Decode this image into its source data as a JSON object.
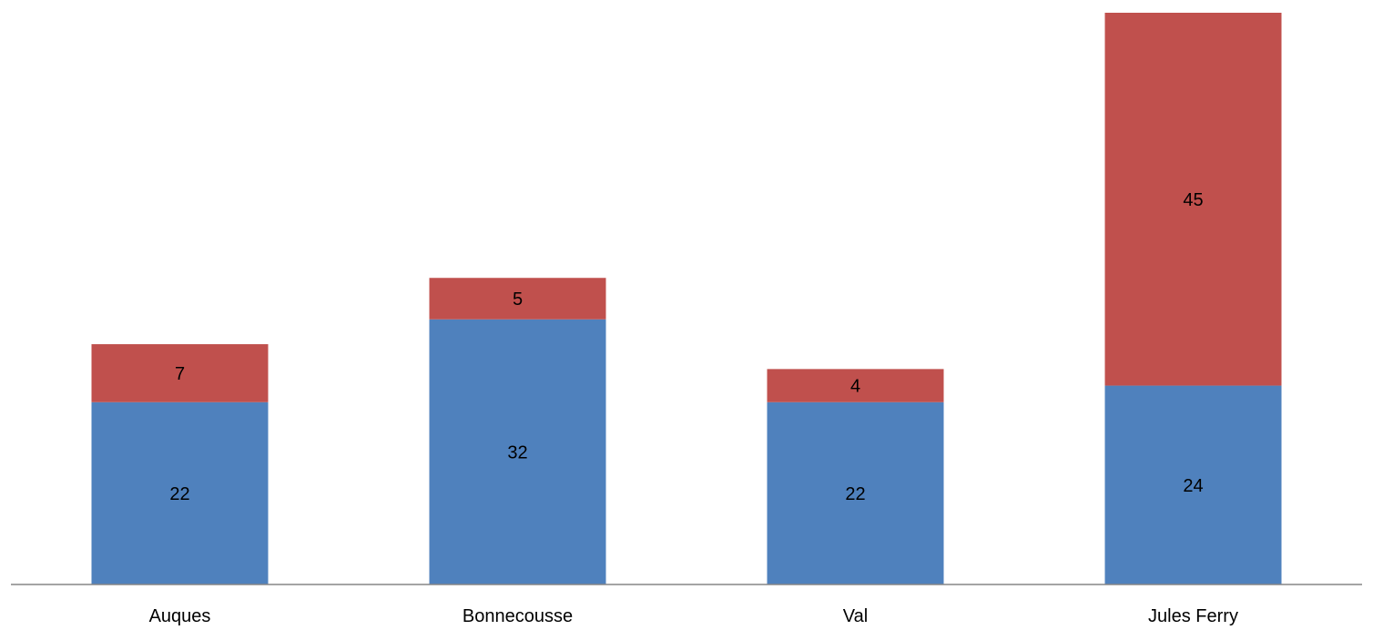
{
  "chart_data": {
    "type": "bar",
    "stacked": true,
    "categories": [
      "Auques",
      "Bonnecousse",
      "Val",
      "Jules Ferry"
    ],
    "series": [
      {
        "values": [
          22,
          32,
          22,
          24
        ],
        "color": "#4f81bd"
      },
      {
        "values": [
          7,
          5,
          4,
          45
        ],
        "color": "#c0504d"
      }
    ],
    "ylim": [
      0,
      69
    ],
    "legend": "none",
    "grid": false,
    "y_axis_visible": false,
    "data_labels": true
  }
}
